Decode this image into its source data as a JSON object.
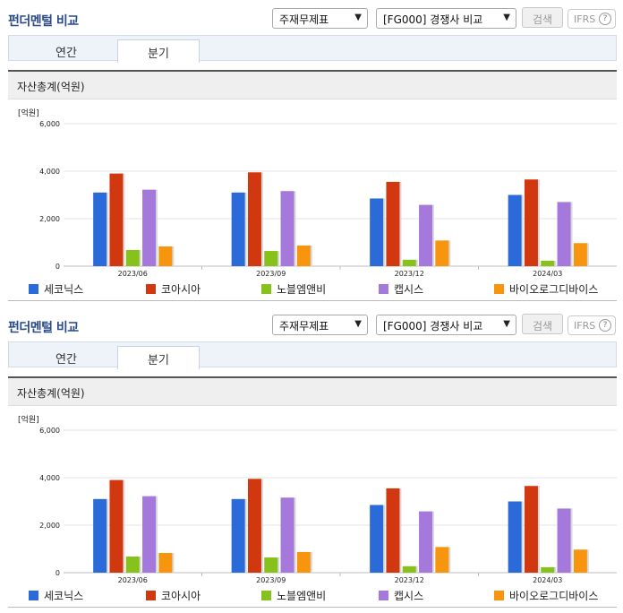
{
  "panels": [
    {
      "title": "펀더멘털 비교",
      "select_statement": "주재무제표",
      "select_peer": "[FG000] 경쟁사 비교",
      "search_label": "검색",
      "ifrs_label": "IFRS",
      "ifrs_help": "?",
      "tabs": [
        "연간",
        "분기"
      ],
      "active_tab": "분기",
      "chart_header": "자산총계(억원)",
      "unit_label": "[억원]"
    },
    {
      "title": "펀더멘털 비교",
      "select_statement": "주재무제표",
      "select_peer": "[FG000] 경쟁사 비교",
      "search_label": "검색",
      "ifrs_label": "IFRS",
      "ifrs_help": "?",
      "tabs": [
        "연간",
        "분기"
      ],
      "active_tab": "분기",
      "chart_header": "자산총계(억원)",
      "unit_label": "[억원]"
    }
  ],
  "chart_data": [
    {
      "type": "bar",
      "title": "자산총계(억원)",
      "ylabel": "[억원]",
      "ylim": [
        0,
        6000
      ],
      "yticks": [
        0,
        2000,
        4000,
        6000
      ],
      "ytick_labels": [
        "0",
        "2,000",
        "4,000",
        "6,000"
      ],
      "categories": [
        "2023/06",
        "2023/09",
        "2023/12",
        "2024/03"
      ],
      "grid": true,
      "legend_position": "bottom",
      "series": [
        {
          "name": "세코닉스",
          "color": "#2b6bd9",
          "values": [
            3100,
            3100,
            2850,
            3000
          ]
        },
        {
          "name": "코아시아",
          "color": "#d1380f",
          "values": [
            3900,
            3950,
            3550,
            3650
          ]
        },
        {
          "name": "노블엠앤비",
          "color": "#87c21c",
          "values": [
            680,
            640,
            270,
            230
          ]
        },
        {
          "name": "캡시스",
          "color": "#a578dc",
          "values": [
            3220,
            3160,
            2580,
            2700
          ]
        },
        {
          "name": "바이오로그디바이스",
          "color": "#f7950e",
          "values": [
            830,
            870,
            1080,
            970
          ]
        }
      ]
    },
    {
      "type": "bar",
      "title": "자산총계(억원)",
      "ylabel": "[억원]",
      "ylim": [
        0,
        6000
      ],
      "yticks": [
        0,
        2000,
        4000,
        6000
      ],
      "ytick_labels": [
        "0",
        "2,000",
        "4,000",
        "6,000"
      ],
      "categories": [
        "2023/06",
        "2023/09",
        "2023/12",
        "2024/03"
      ],
      "grid": true,
      "legend_position": "bottom",
      "series": [
        {
          "name": "세코닉스",
          "color": "#2b6bd9",
          "values": [
            3100,
            3100,
            2850,
            3000
          ]
        },
        {
          "name": "코아시아",
          "color": "#d1380f",
          "values": [
            3900,
            3950,
            3550,
            3650
          ]
        },
        {
          "name": "노블엠앤비",
          "color": "#87c21c",
          "values": [
            680,
            640,
            270,
            230
          ]
        },
        {
          "name": "캡시스",
          "color": "#a578dc",
          "values": [
            3220,
            3160,
            2580,
            2700
          ]
        },
        {
          "name": "바이오로그디바이스",
          "color": "#f7950e",
          "values": [
            830,
            870,
            1080,
            970
          ]
        }
      ]
    }
  ]
}
